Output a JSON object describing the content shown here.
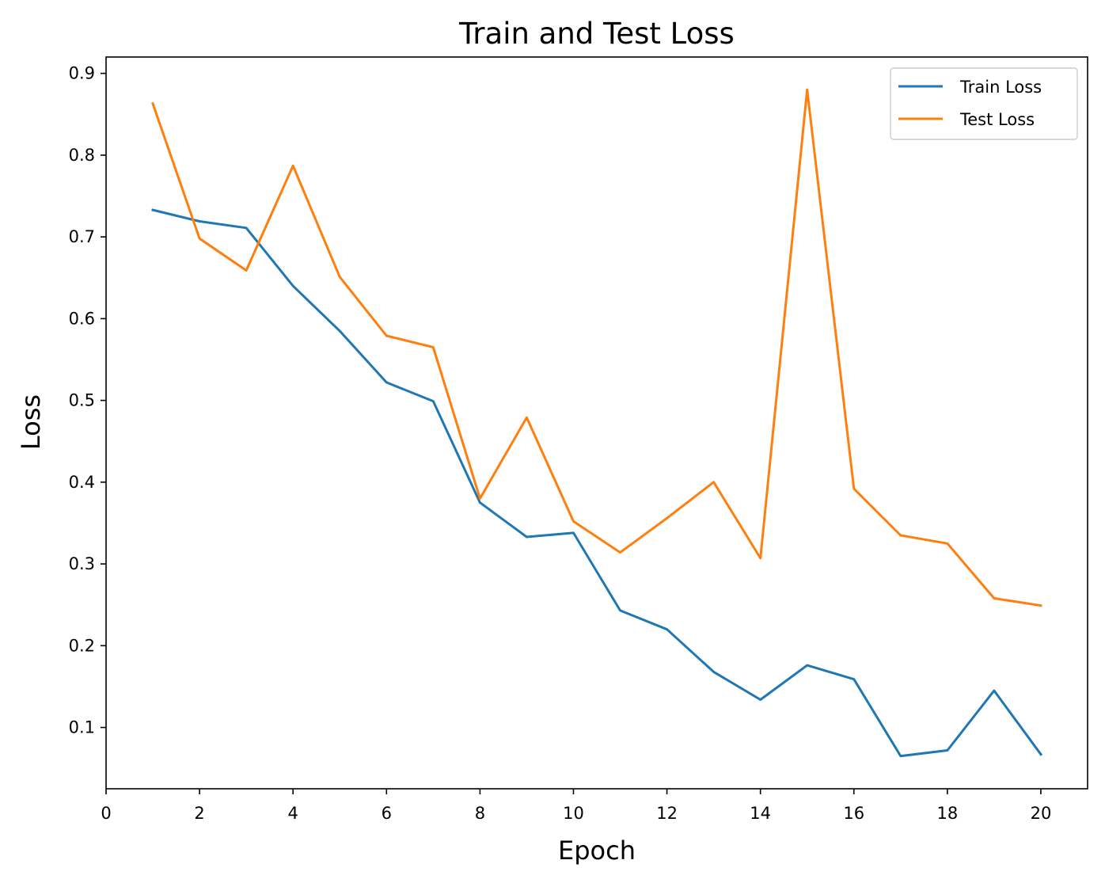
{
  "chart_data": {
    "type": "line",
    "title": "Train and Test Loss",
    "xlabel": "Epoch",
    "ylabel": "Loss",
    "xlim": [
      0,
      21
    ],
    "ylim": [
      0.025,
      0.92
    ],
    "xticks": [
      0,
      2,
      4,
      6,
      8,
      10,
      12,
      14,
      16,
      18,
      20
    ],
    "yticks": [
      0.1,
      0.2,
      0.3,
      0.4,
      0.5,
      0.6,
      0.7,
      0.8,
      0.9
    ],
    "grid": false,
    "legend_position": "top-right",
    "x": [
      1,
      2,
      3,
      4,
      5,
      6,
      7,
      8,
      9,
      10,
      11,
      12,
      13,
      14,
      15,
      16,
      17,
      18,
      19,
      20
    ],
    "series": [
      {
        "name": "Train Loss",
        "color": "#1f77b4",
        "values": [
          0.733,
          0.719,
          0.711,
          0.64,
          0.585,
          0.522,
          0.499,
          0.375,
          0.333,
          0.338,
          0.243,
          0.22,
          0.168,
          0.134,
          0.176,
          0.159,
          0.065,
          0.072,
          0.145,
          0.067
        ]
      },
      {
        "name": "Test Loss",
        "color": "#ff7f0e",
        "values": [
          0.863,
          0.698,
          0.659,
          0.787,
          0.651,
          0.579,
          0.565,
          0.38,
          0.479,
          0.352,
          0.314,
          0.356,
          0.4,
          0.307,
          0.88,
          0.392,
          0.335,
          0.325,
          0.258,
          0.249
        ]
      }
    ]
  }
}
